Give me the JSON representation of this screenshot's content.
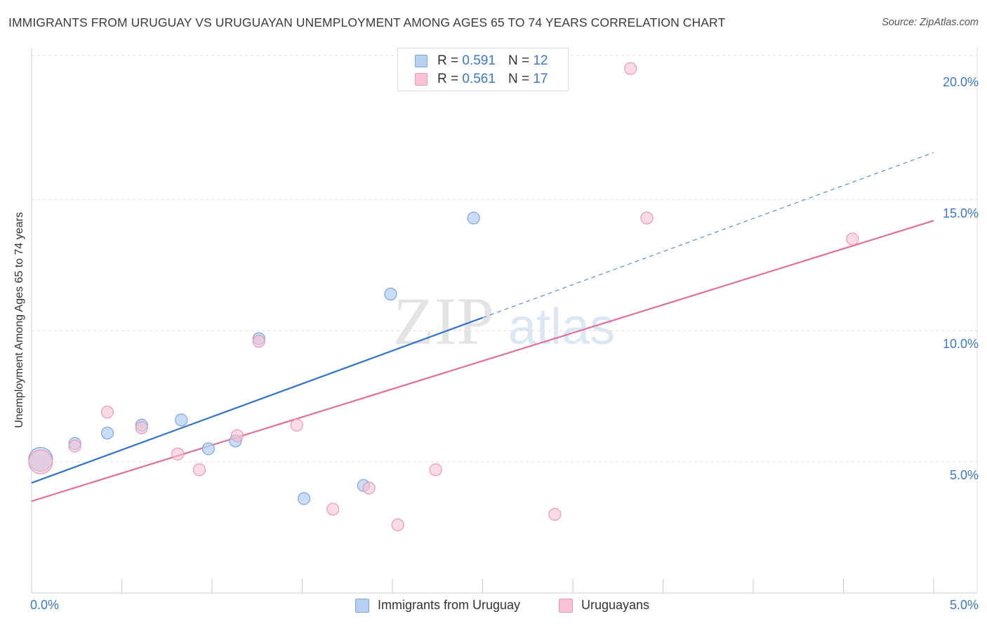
{
  "title": "IMMIGRANTS FROM URUGUAY VS URUGUAYAN UNEMPLOYMENT AMONG AGES 65 TO 74 YEARS CORRELATION CHART",
  "source": "Source: ZipAtlas.com",
  "watermark": {
    "zip": "ZIP",
    "atlas": "atlas"
  },
  "legend": {
    "series1": {
      "r_label": "R =",
      "r_value": "0.591",
      "n_label": "N =",
      "n_value": "12"
    },
    "series2": {
      "r_label": "R =",
      "r_value": "0.561",
      "n_label": "N =",
      "n_value": "17"
    }
  },
  "colors": {
    "blue_fill": "#b8d1f3",
    "blue_stroke": "#7aa6e0",
    "blue_line": "#2f74c8",
    "pink_fill": "#f7c3d3",
    "pink_stroke": "#eb99b3",
    "pink_line": "#e07096",
    "grid": "#dddddd",
    "axis": "#cccccc",
    "tick_text": "#3a78c8"
  },
  "chart_data": {
    "type": "scatter",
    "title": "IMMIGRANTS FROM URUGUAY VS URUGUAYAN UNEMPLOYMENT AMONG AGES 65 TO 74 YEARS CORRELATION CHART",
    "xlabel": "",
    "ylabel": "Unemployment Among Ages 65 to 74 years",
    "xlim": [
      0,
      5
    ],
    "ylim": [
      0,
      20.5
    ],
    "x_tick_labels": [
      {
        "value": 0,
        "label": "0.0%"
      },
      {
        "value": 5,
        "label": "5.0%"
      }
    ],
    "y_tick_labels": [
      {
        "value": 5,
        "label": "5.0%"
      },
      {
        "value": 10,
        "label": "10.0%"
      },
      {
        "value": 15,
        "label": "15.0%"
      },
      {
        "value": 20,
        "label": "20.0%"
      }
    ],
    "y_grid": [
      5,
      10,
      15,
      20.5
    ],
    "x_minor_ticks": [
      0.5,
      1,
      1.5,
      2,
      2.5,
      3,
      3.5,
      4,
      4.5,
      5
    ],
    "series": [
      {
        "name": "Immigrants from Uruguay",
        "color": "#b8d1f3",
        "points": [
          {
            "x": 0.05,
            "y": 5.1,
            "size": "large"
          },
          {
            "x": 0.24,
            "y": 5.7
          },
          {
            "x": 0.42,
            "y": 6.1
          },
          {
            "x": 0.61,
            "y": 6.4
          },
          {
            "x": 0.83,
            "y": 6.6
          },
          {
            "x": 0.98,
            "y": 5.5
          },
          {
            "x": 1.13,
            "y": 5.8
          },
          {
            "x": 1.26,
            "y": 9.7
          },
          {
            "x": 1.51,
            "y": 3.6
          },
          {
            "x": 1.84,
            "y": 4.1
          },
          {
            "x": 1.99,
            "y": 11.4
          },
          {
            "x": 2.45,
            "y": 14.3
          }
        ],
        "trend": {
          "x0": 0,
          "y0": 4.2,
          "x1": 2.5,
          "y1": 10.5,
          "dashed_to_x": 5,
          "dashed_to_y": 16.8
        }
      },
      {
        "name": "Uruguayans",
        "color": "#f7c3d3",
        "points": [
          {
            "x": 0.05,
            "y": 5.0,
            "size": "large"
          },
          {
            "x": 0.24,
            "y": 5.6
          },
          {
            "x": 0.42,
            "y": 6.9
          },
          {
            "x": 0.61,
            "y": 6.3
          },
          {
            "x": 0.81,
            "y": 5.3
          },
          {
            "x": 0.93,
            "y": 4.7
          },
          {
            "x": 1.14,
            "y": 6.0
          },
          {
            "x": 1.26,
            "y": 9.6
          },
          {
            "x": 1.47,
            "y": 6.4
          },
          {
            "x": 1.67,
            "y": 3.2
          },
          {
            "x": 1.87,
            "y": 4.0
          },
          {
            "x": 2.03,
            "y": 2.6
          },
          {
            "x": 2.24,
            "y": 4.7
          },
          {
            "x": 2.9,
            "y": 3.0
          },
          {
            "x": 3.32,
            "y": 20.0
          },
          {
            "x": 3.41,
            "y": 14.3
          },
          {
            "x": 4.55,
            "y": 13.5
          }
        ],
        "trend": {
          "x0": 0,
          "y0": 3.5,
          "x1": 5,
          "y1": 14.2
        }
      }
    ]
  }
}
